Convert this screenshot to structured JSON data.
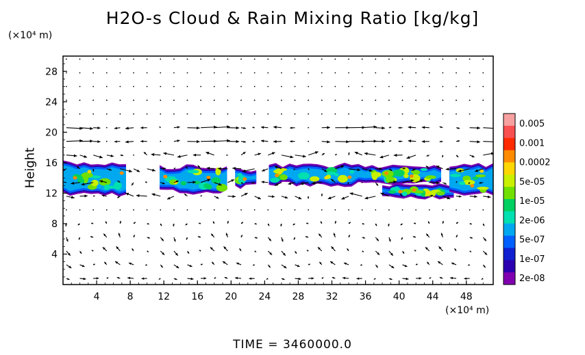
{
  "chart_data": {
    "type": "heatmap",
    "title": "H2O-s Cloud & Rain Mixing Ratio [kg/kg]",
    "ylabel": "Height",
    "y_unit": "(×10⁴ m)",
    "x_unit": "(×10⁴ m)",
    "xlim": [
      0,
      51.2
    ],
    "ylim": [
      0,
      30
    ],
    "x_ticks": [
      4,
      8,
      12,
      16,
      20,
      24,
      28,
      32,
      36,
      40,
      44,
      48
    ],
    "y_ticks": [
      4,
      8,
      12,
      16,
      20,
      24,
      28
    ],
    "colorbar": {
      "labels": [
        "0.005",
        "0.001",
        "0.0002",
        "5e-05",
        "1e-05",
        "2e-06",
        "5e-07",
        "1e-07",
        "2e-08"
      ],
      "colors": [
        "#f7a0a0",
        "#f85050",
        "#ff2a00",
        "#ff8c00",
        "#ffd700",
        "#c8f000",
        "#70e000",
        "#00d060",
        "#00e0b0",
        "#00a8f0",
        "#0060ff",
        "#1020d0",
        "#2c00b0",
        "#8000b0"
      ]
    },
    "cloud_regions": [
      {
        "x0": 0.0,
        "x1": 7.5,
        "y_min": 11.5,
        "y_max": 16.3
      },
      {
        "x0": 11.5,
        "x1": 19.5,
        "y_min": 11.8,
        "y_max": 15.8
      },
      {
        "x0": 20.5,
        "x1": 23.0,
        "y_min": 12.5,
        "y_max": 15.5
      },
      {
        "x0": 24.5,
        "x1": 45.0,
        "y_min": 12.8,
        "y_max": 16.0
      },
      {
        "x0": 38.0,
        "x1": 46.5,
        "y_min": 11.0,
        "y_max": 13.5
      },
      {
        "x0": 46.0,
        "x1": 51.2,
        "y_min": 11.5,
        "y_max": 16.0
      }
    ],
    "wind_field": "vectors"
  },
  "timestamp": "TIME = 3460000.0"
}
